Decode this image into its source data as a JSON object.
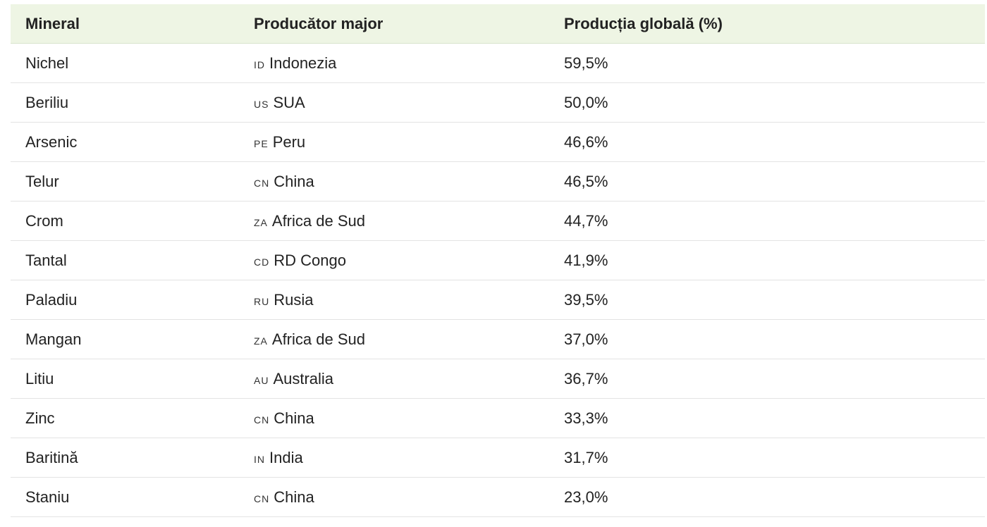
{
  "table": {
    "headers": [
      "Mineral",
      "Producător major",
      "Producția globală (%)"
    ],
    "rows": [
      [
        "Nichel",
        "ID",
        "Indonezia",
        "59,5%"
      ],
      [
        "Beriliu",
        "US",
        "SUA",
        "50,0%"
      ],
      [
        "Arsenic",
        "PE",
        "Peru",
        "46,6%"
      ],
      [
        "Telur",
        "CN",
        "China",
        "46,5%"
      ],
      [
        "Crom",
        "ZA",
        "Africa de Sud",
        "44,7%"
      ],
      [
        "Tantal",
        "CD",
        "RD Congo",
        "41,9%"
      ],
      [
        "Paladiu",
        "RU",
        "Rusia",
        "39,5%"
      ],
      [
        "Mangan",
        "ZA",
        "Africa de Sud",
        "37,0%"
      ],
      [
        "Litiu",
        "AU",
        "Australia",
        "36,7%"
      ],
      [
        "Zinc",
        "CN",
        "China",
        "33,3%"
      ],
      [
        "Baritină",
        "IN",
        "India",
        "31,7%"
      ],
      [
        "Staniu",
        "CN",
        "China",
        "23,0%"
      ]
    ]
  }
}
